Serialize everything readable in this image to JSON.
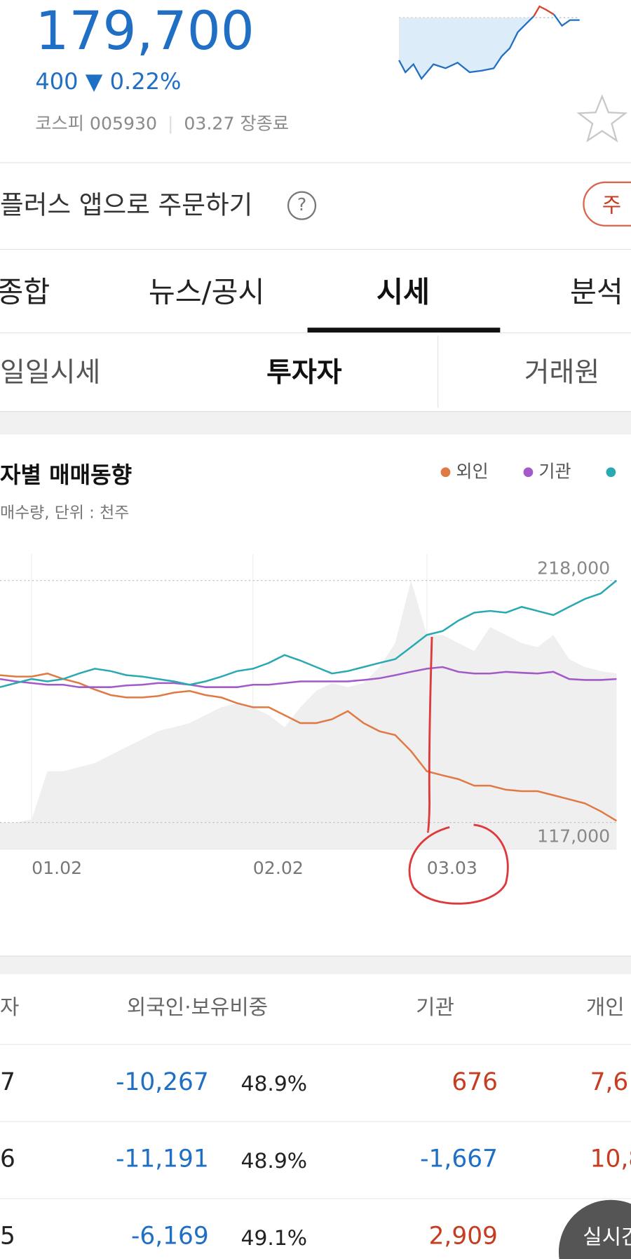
{
  "header": {
    "price": "179,700",
    "change": "400",
    "change_arrow": "▼",
    "change_rate": "0.22%",
    "market": "코스피 005930",
    "status": "03.27 장종료"
  },
  "order_bar": {
    "text": "플러스 앱으로 주문하기",
    "help": "?",
    "button": "주"
  },
  "tabs": [
    "종합",
    "뉴스/공시",
    "시세",
    "분석"
  ],
  "subtabs": [
    "일일시세",
    "투자자",
    "거래원"
  ],
  "chart_data": {
    "type": "line",
    "title": "자별 매매동향",
    "subtitle": "매수량, 단위 : 천주",
    "categories": [
      null,
      null,
      "01.02",
      null,
      null,
      null,
      null,
      null,
      null,
      null,
      null,
      null,
      null,
      null,
      null,
      null,
      "02.02",
      null,
      null,
      null,
      null,
      null,
      null,
      null,
      null,
      null,
      null,
      "03.03",
      null,
      null,
      null,
      null,
      null,
      null,
      null,
      null,
      null,
      null,
      null,
      null
    ],
    "area": {
      "color": "#efefef",
      "values": [
        117000,
        117000,
        118300,
        138400,
        138400,
        140100,
        141800,
        145200,
        148500,
        151800,
        155200,
        156800,
        158500,
        161800,
        165100,
        166800,
        165100,
        161800,
        156800,
        165100,
        171900,
        175200,
        173500,
        175200,
        181900,
        191900,
        218000,
        195300,
        195300,
        191900,
        188600,
        198600,
        195300,
        191900,
        190200,
        195300,
        185200,
        181900,
        180200,
        179200
      ]
    },
    "series": [
      {
        "name": "외인",
        "color": "#e07a45",
        "values": [
          178500,
          177900,
          177900,
          179200,
          176900,
          175200,
          172500,
          170200,
          169200,
          169200,
          169800,
          171200,
          171900,
          170200,
          169200,
          166800,
          165100,
          165100,
          161800,
          158500,
          158500,
          160100,
          163500,
          158500,
          155100,
          153500,
          146800,
          138400,
          136700,
          135100,
          132400,
          132400,
          130700,
          130100,
          130100,
          128400,
          126700,
          125000,
          121700,
          117700
        ]
      },
      {
        "name": "기관",
        "color": "#a459c8",
        "values": [
          176900,
          175900,
          175200,
          174500,
          174500,
          173500,
          173500,
          173500,
          174200,
          174500,
          175200,
          175200,
          174500,
          173500,
          173500,
          173500,
          174500,
          174500,
          175200,
          175900,
          175900,
          175900,
          175900,
          176500,
          177200,
          178500,
          179900,
          181200,
          181900,
          179900,
          179200,
          179200,
          179900,
          179500,
          179200,
          179900,
          176900,
          176500,
          176500,
          176900
        ]
      },
      {
        "color": "#2aa9b2",
        "values": [
          173500,
          175200,
          176900,
          175900,
          176900,
          179200,
          181200,
          180200,
          178500,
          177900,
          176900,
          175900,
          174500,
          175900,
          177900,
          180200,
          181200,
          183600,
          186900,
          184600,
          181900,
          179200,
          180200,
          181900,
          183600,
          185200,
          190200,
          195300,
          196900,
          201300,
          204600,
          205300,
          204600,
          207000,
          205300,
          203600,
          207000,
          210300,
          212600,
          218000
        ]
      }
    ],
    "ylim": [
      106000,
      229000
    ],
    "yticks": [
      {
        "value": 117000,
        "label": "117,000"
      },
      {
        "value": 218000,
        "label": "218,000"
      }
    ]
  },
  "table": {
    "header": [
      "자",
      "외국인·보유비중",
      "기관",
      "개인"
    ],
    "rows": [
      [
        "7",
        "-10,267",
        "48.9%",
        "676",
        "7,6"
      ],
      [
        "6",
        "-11,191",
        "48.9%",
        "-1,667",
        "10,8"
      ],
      [
        "5",
        "-6,169",
        "49.1%",
        "2,909",
        ""
      ]
    ]
  },
  "floating_button": "실시간"
}
